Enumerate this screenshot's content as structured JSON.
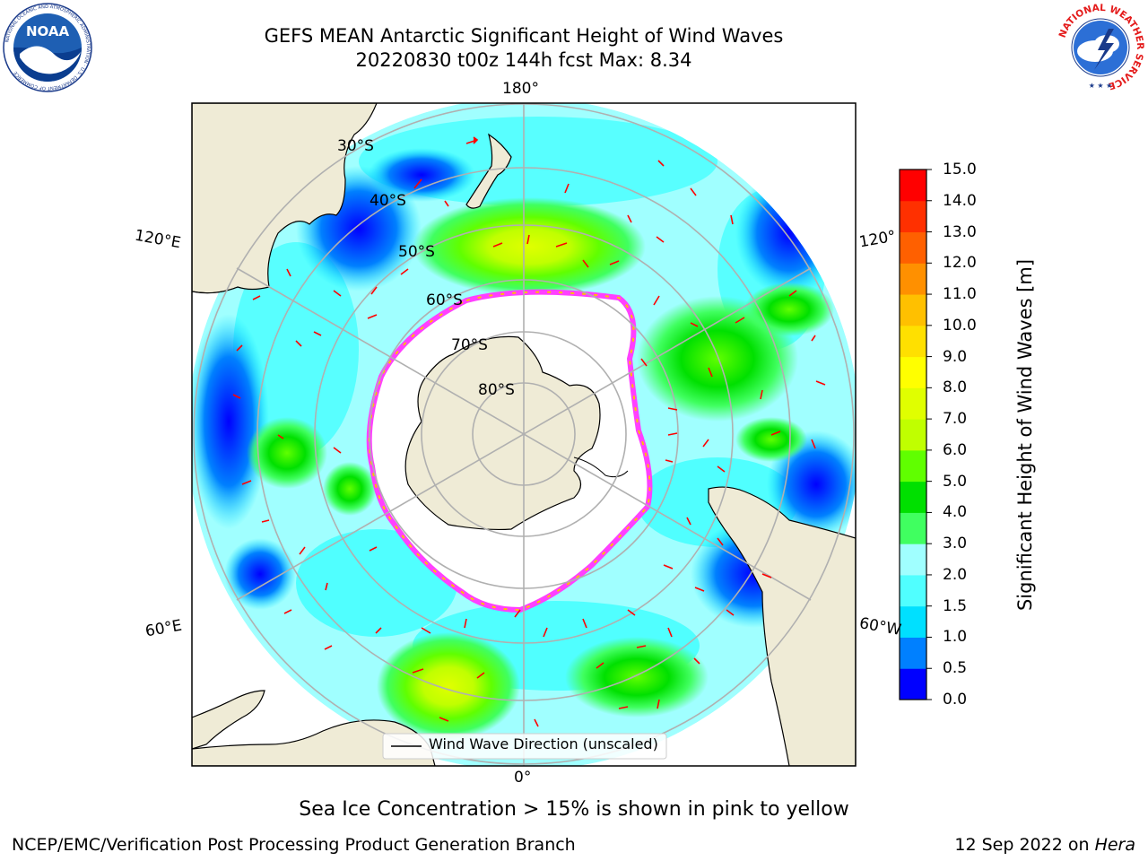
{
  "header": {
    "title_line1": "GEFS MEAN Antarctic Significant Height of Wind Waves",
    "title_line2": "20220830 t00z 144h fcst   Max: 8.34"
  },
  "logos": {
    "left": {
      "name": "noaa-logo",
      "text": "NOAA",
      "ring_text": "NATIONAL OCEANIC AND ATMOSPHERIC ADMINISTRATION · U.S. DEPARTMENT OF COMMERCE"
    },
    "right": {
      "name": "nws-logo",
      "ring_text": "NATIONAL WEATHER SERVICE"
    }
  },
  "map": {
    "projection": "south-polar-stereographic",
    "lon_labels": {
      "top": "180°",
      "bottom": "0°",
      "left_upper": "120°E",
      "left_lower": "60°E",
      "right_upper": "120°",
      "right_lower": "60°W"
    },
    "lat_labels": [
      "30°S",
      "40°S",
      "50°S",
      "60°S",
      "70°S",
      "80°S"
    ],
    "legend_label": "Wind Wave Direction (unscaled)",
    "colors": {
      "land": "#efebd6",
      "ice_shelf": "#ffffff",
      "sea_ice_edge": "#ff40ff",
      "arrow": "#ff0000",
      "grid": "#b0b0b0"
    }
  },
  "colorbar": {
    "title": "Significant Height of Wind Waves [m]",
    "ticks": [
      "0.0",
      "0.5",
      "1.0",
      "1.5",
      "2.0",
      "3.0",
      "4.0",
      "5.0",
      "6.0",
      "7.0",
      "8.0",
      "9.0",
      "10.0",
      "11.0",
      "12.0",
      "13.0",
      "14.0",
      "15.0"
    ],
    "colors": [
      "#0000ff",
      "#0080ff",
      "#00e0ff",
      "#50ffff",
      "#a0ffff",
      "#40ff60",
      "#00e000",
      "#60ff00",
      "#c0ff00",
      "#e0ff00",
      "#ffff00",
      "#ffe000",
      "#ffc000",
      "#ff9000",
      "#ff6000",
      "#ff3000",
      "#ff0000"
    ]
  },
  "caption": "Sea Ice Concentration > 15% is shown in pink to yellow",
  "footer": {
    "left": "NCEP/EMC/Verification Post Processing Product Generation Branch",
    "date": "12 Sep 2022 on ",
    "machine": "Hera"
  }
}
